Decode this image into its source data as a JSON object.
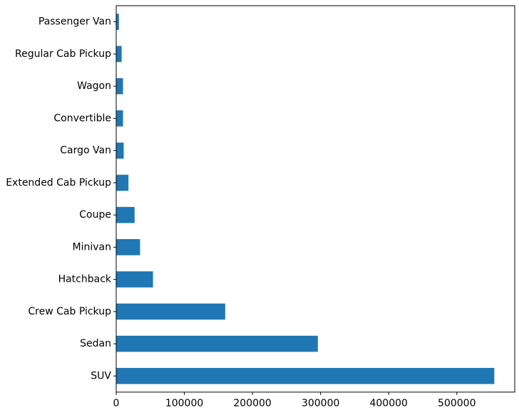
{
  "chart_data": {
    "type": "bar",
    "orientation": "horizontal",
    "categories": [
      "SUV",
      "Sedan",
      "Crew Cab Pickup",
      "Hatchback",
      "Minivan",
      "Coupe",
      "Extended Cab Pickup",
      "Cargo Van",
      "Convertible",
      "Wagon",
      "Regular Cab Pickup",
      "Passenger Van"
    ],
    "values": [
      555000,
      296000,
      160000,
      54000,
      35000,
      27000,
      18000,
      11000,
      10000,
      10000,
      8000,
      4000
    ],
    "title": "",
    "xlabel": "",
    "ylabel": "",
    "xlim": [
      0,
      585000
    ],
    "xticks": [
      0,
      100000,
      200000,
      300000,
      400000,
      500000
    ],
    "grid": false,
    "bar_color": "#1f77b4"
  }
}
